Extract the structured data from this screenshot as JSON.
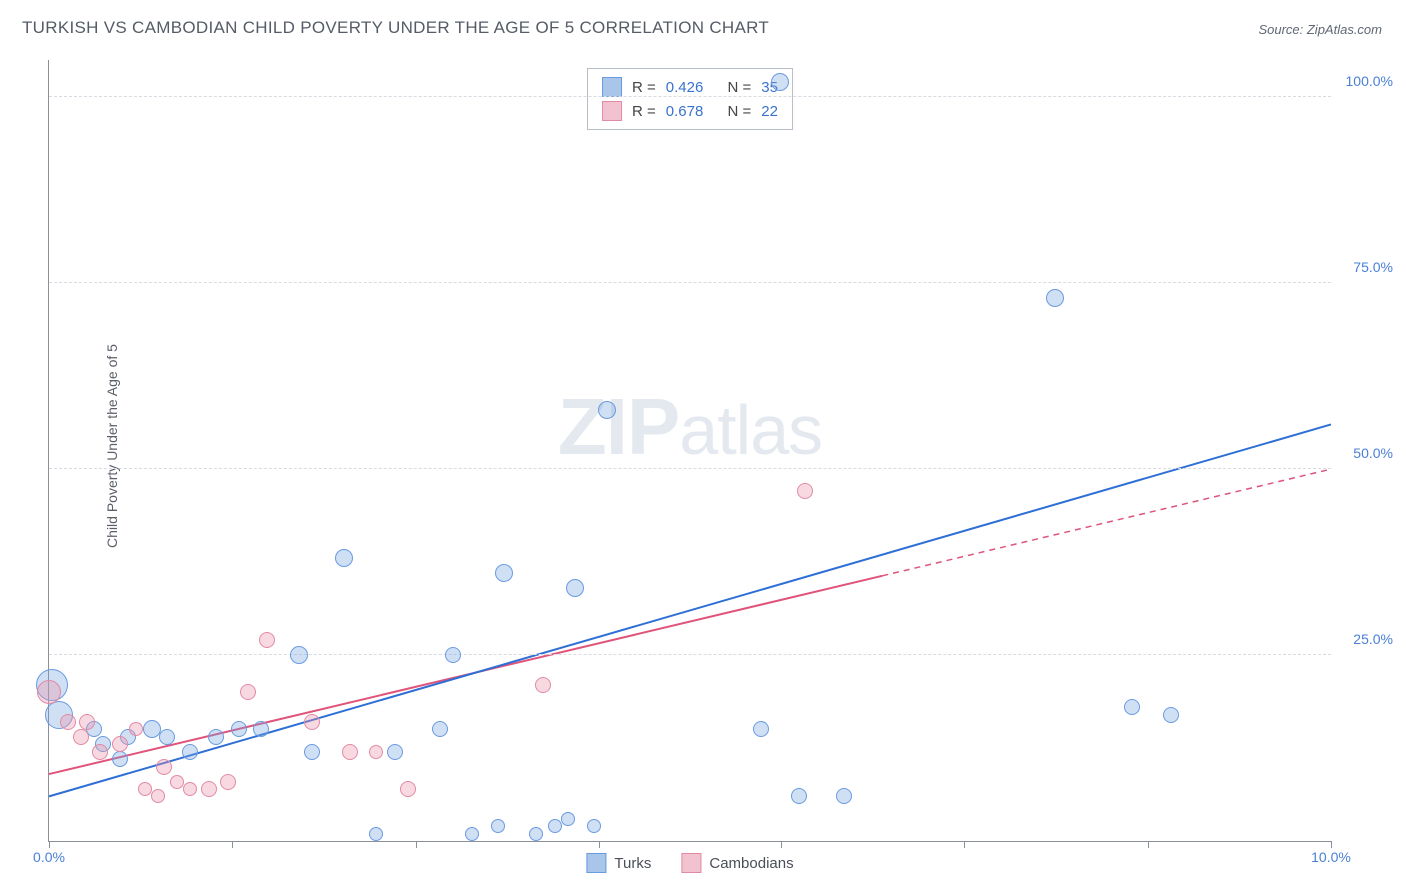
{
  "title": "TURKISH VS CAMBODIAN CHILD POVERTY UNDER THE AGE OF 5 CORRELATION CHART",
  "source_label": "Source: ",
  "source_value": "ZipAtlas.com",
  "ylabel": "Child Poverty Under the Age of 5",
  "watermark_zip": "ZIP",
  "watermark_atlas": "atlas",
  "chart": {
    "type": "scatter-with-trend",
    "background_color": "#ffffff",
    "grid_color": "#d8dce2",
    "axis_color": "#8a8f98",
    "xlim": [
      0,
      10
    ],
    "ylim": [
      0,
      105
    ],
    "xtick_labels": [
      {
        "pos": 0,
        "label": "0.0%"
      },
      {
        "pos": 10,
        "label": "10.0%"
      }
    ],
    "xtick_marks": [
      0,
      1.43,
      2.86,
      4.29,
      5.71,
      7.14,
      8.57,
      10
    ],
    "ytick_labels": [
      {
        "pos": 25,
        "label": "25.0%"
      },
      {
        "pos": 50,
        "label": "50.0%"
      },
      {
        "pos": 75,
        "label": "75.0%"
      },
      {
        "pos": 100,
        "label": "100.0%"
      }
    ],
    "grid_y": [
      25,
      50,
      75,
      100
    ]
  },
  "series": {
    "turks": {
      "label": "Turks",
      "fill": "rgba(117,162,224,0.35)",
      "stroke": "#6a9be0",
      "swatch_fill": "#a9c5ea",
      "swatch_stroke": "#6a9be0",
      "trend_color": "#2e6fd6",
      "r_label": "R = ",
      "r_value": "0.426",
      "n_label": "N = ",
      "n_value": "35",
      "trend_x1": 0,
      "trend_y1": 6,
      "trend_x2": 10,
      "trend_y2": 56,
      "trend_solid_until": 10,
      "points": [
        {
          "x": 0.02,
          "y": 21,
          "r": 16
        },
        {
          "x": 0.08,
          "y": 17,
          "r": 14
        },
        {
          "x": 0.35,
          "y": 15,
          "r": 8
        },
        {
          "x": 0.42,
          "y": 13,
          "r": 8
        },
        {
          "x": 0.55,
          "y": 11,
          "r": 8
        },
        {
          "x": 0.62,
          "y": 14,
          "r": 8
        },
        {
          "x": 0.8,
          "y": 15,
          "r": 9
        },
        {
          "x": 0.92,
          "y": 14,
          "r": 8
        },
        {
          "x": 1.1,
          "y": 12,
          "r": 8
        },
        {
          "x": 1.3,
          "y": 14,
          "r": 8
        },
        {
          "x": 1.48,
          "y": 15,
          "r": 8
        },
        {
          "x": 1.65,
          "y": 15,
          "r": 8
        },
        {
          "x": 1.95,
          "y": 25,
          "r": 9
        },
        {
          "x": 2.05,
          "y": 12,
          "r": 8
        },
        {
          "x": 2.3,
          "y": 38,
          "r": 9
        },
        {
          "x": 2.55,
          "y": 1,
          "r": 7
        },
        {
          "x": 2.7,
          "y": 12,
          "r": 8
        },
        {
          "x": 3.05,
          "y": 15,
          "r": 8
        },
        {
          "x": 3.15,
          "y": 25,
          "r": 8
        },
        {
          "x": 3.3,
          "y": 1,
          "r": 7
        },
        {
          "x": 3.5,
          "y": 2,
          "r": 7
        },
        {
          "x": 3.55,
          "y": 36,
          "r": 9
        },
        {
          "x": 3.8,
          "y": 1,
          "r": 7
        },
        {
          "x": 3.95,
          "y": 2,
          "r": 7
        },
        {
          "x": 4.05,
          "y": 3,
          "r": 7
        },
        {
          "x": 4.1,
          "y": 34,
          "r": 9
        },
        {
          "x": 4.25,
          "y": 2,
          "r": 7
        },
        {
          "x": 4.35,
          "y": 58,
          "r": 9
        },
        {
          "x": 5.55,
          "y": 15,
          "r": 8
        },
        {
          "x": 5.7,
          "y": 102,
          "r": 9
        },
        {
          "x": 5.85,
          "y": 6,
          "r": 8
        },
        {
          "x": 6.2,
          "y": 6,
          "r": 8
        },
        {
          "x": 7.85,
          "y": 73,
          "r": 9
        },
        {
          "x": 8.45,
          "y": 18,
          "r": 8
        },
        {
          "x": 8.75,
          "y": 17,
          "r": 8
        }
      ]
    },
    "cambodians": {
      "label": "Cambodians",
      "fill": "rgba(238,145,170,0.35)",
      "stroke": "#e18aa4",
      "swatch_fill": "#f3c2d0",
      "swatch_stroke": "#e18aa4",
      "trend_color": "#e0537a",
      "r_label": "R = ",
      "r_value": "0.678",
      "n_label": "N = ",
      "n_value": "22",
      "trend_x1": 0,
      "trend_y1": 9,
      "trend_x2": 10,
      "trend_y2": 50,
      "trend_solid_until": 6.5,
      "points": [
        {
          "x": 0.0,
          "y": 20,
          "r": 12
        },
        {
          "x": 0.15,
          "y": 16,
          "r": 8
        },
        {
          "x": 0.25,
          "y": 14,
          "r": 8
        },
        {
          "x": 0.3,
          "y": 16,
          "r": 8
        },
        {
          "x": 0.4,
          "y": 12,
          "r": 8
        },
        {
          "x": 0.55,
          "y": 13,
          "r": 8
        },
        {
          "x": 0.68,
          "y": 15,
          "r": 7
        },
        {
          "x": 0.75,
          "y": 7,
          "r": 7
        },
        {
          "x": 0.85,
          "y": 6,
          "r": 7
        },
        {
          "x": 0.9,
          "y": 10,
          "r": 8
        },
        {
          "x": 1.0,
          "y": 8,
          "r": 7
        },
        {
          "x": 1.1,
          "y": 7,
          "r": 7
        },
        {
          "x": 1.25,
          "y": 7,
          "r": 8
        },
        {
          "x": 1.4,
          "y": 8,
          "r": 8
        },
        {
          "x": 1.55,
          "y": 20,
          "r": 8
        },
        {
          "x": 1.7,
          "y": 27,
          "r": 8
        },
        {
          "x": 2.05,
          "y": 16,
          "r": 8
        },
        {
          "x": 2.35,
          "y": 12,
          "r": 8
        },
        {
          "x": 2.55,
          "y": 12,
          "r": 7
        },
        {
          "x": 2.8,
          "y": 7,
          "r": 8
        },
        {
          "x": 3.85,
          "y": 21,
          "r": 8
        },
        {
          "x": 5.9,
          "y": 47,
          "r": 8
        }
      ]
    }
  }
}
